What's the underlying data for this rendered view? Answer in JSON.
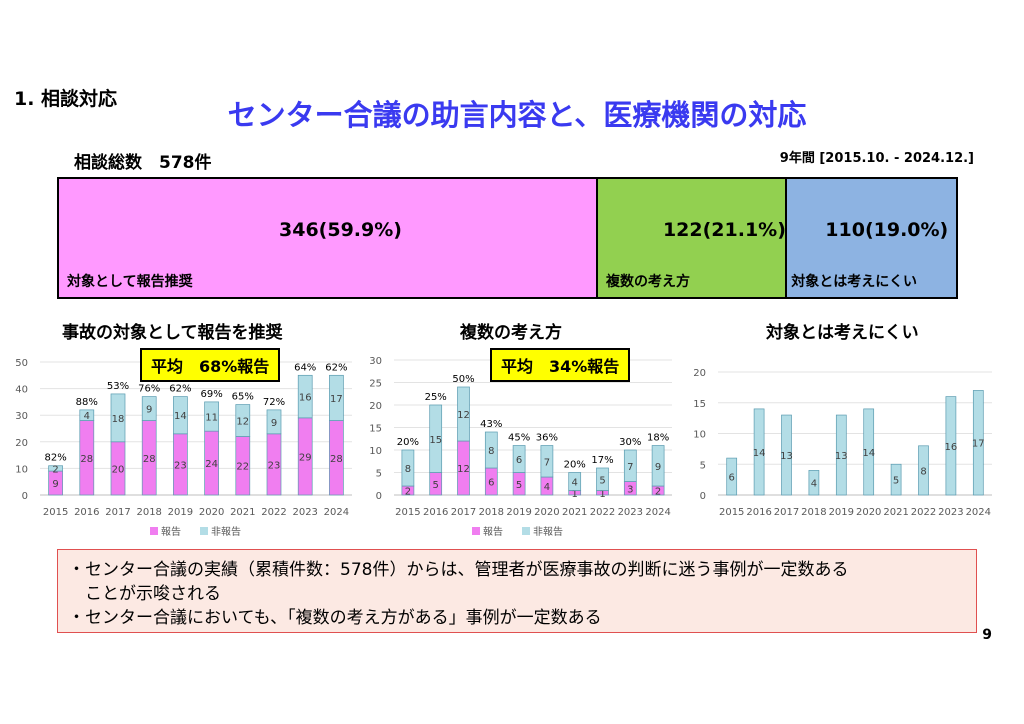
{
  "section_title": "1. 相談対応",
  "main_title": "センター合議の助言内容と、医療機関の対応",
  "total_label": "相談総数　578件",
  "period": "9年間 [2015.10. - 2024.12.]",
  "summary_bar": [
    {
      "value_text": "346(59.9%)",
      "label": "対象として報告推奨",
      "value": 346,
      "color": "#ff99ff"
    },
    {
      "value_text": "122(21.1%)",
      "label": "複数の考え方",
      "value": 122,
      "color": "#92d050"
    },
    {
      "value_text": "110(19.0%)",
      "label": "対象とは考えにくい",
      "value": 110,
      "color": "#8db3e2"
    }
  ],
  "panels": {
    "p1": {
      "title": "事故の対象として報告を推奨",
      "avg": "平均　68%報告"
    },
    "p2": {
      "title": "複数の考え方",
      "avg": "平均　34%報告"
    },
    "p3": {
      "title": "対象とは考えにくい"
    }
  },
  "legend": {
    "reported": "報告",
    "not_reported": "非報告"
  },
  "colors": {
    "reported": "#f07ef0",
    "not_reported": "#b3dde6"
  },
  "conclusion": {
    "line1": "・センター合議の実績（累積件数：578件）からは、管理者が医療事故の判断に迷う事例が一定数ある",
    "line2": "　ことが示唆される",
    "line3": "・センター合議においても、「複数の考え方がある」事例が一定数ある"
  },
  "page_number": "9",
  "chart_data": [
    {
      "type": "bar",
      "stacked": true,
      "categories": [
        "2015",
        "2016",
        "2017",
        "2018",
        "2019",
        "2020",
        "2021",
        "2022",
        "2023",
        "2024"
      ],
      "series": [
        {
          "name": "報告",
          "values": [
            9,
            28,
            20,
            28,
            23,
            24,
            22,
            23,
            29,
            28
          ]
        },
        {
          "name": "非報告",
          "values": [
            2,
            4,
            18,
            9,
            14,
            11,
            12,
            9,
            16,
            17
          ]
        }
      ],
      "percent_labels": [
        "82%",
        "88%",
        "53%",
        "76%",
        "62%",
        "69%",
        "65%",
        "72%",
        "64%",
        "62%"
      ],
      "ylim": [
        0,
        50
      ],
      "yticks": [
        0,
        10,
        20,
        30,
        40,
        50
      ],
      "legend": "bottom"
    },
    {
      "type": "bar",
      "stacked": true,
      "categories": [
        "2015",
        "2016",
        "2017",
        "2018",
        "2019",
        "2020",
        "2021",
        "2022",
        "2023",
        "2024"
      ],
      "series": [
        {
          "name": "報告",
          "values": [
            2,
            5,
            12,
            6,
            5,
            4,
            1,
            1,
            3,
            2
          ]
        },
        {
          "name": "非報告",
          "values": [
            8,
            15,
            12,
            8,
            6,
            7,
            4,
            5,
            7,
            9
          ]
        }
      ],
      "percent_labels": [
        "20%",
        "25%",
        "50%",
        "43%",
        "45%",
        "36%",
        "20%",
        "17%",
        "30%",
        "18%"
      ],
      "ylim": [
        0,
        30
      ],
      "yticks": [
        0,
        5,
        10,
        15,
        20,
        25,
        30
      ],
      "legend": "bottom"
    },
    {
      "type": "bar",
      "categories": [
        "2015",
        "2016",
        "2017",
        "2018",
        "2019",
        "2020",
        "2021",
        "2022",
        "2023",
        "2024"
      ],
      "series": [
        {
          "name": "非報告",
          "values": [
            6,
            14,
            13,
            4,
            13,
            14,
            5,
            8,
            16,
            17
          ]
        }
      ],
      "ylim": [
        0,
        20
      ],
      "yticks": [
        0,
        5,
        10,
        15,
        20
      ]
    }
  ]
}
